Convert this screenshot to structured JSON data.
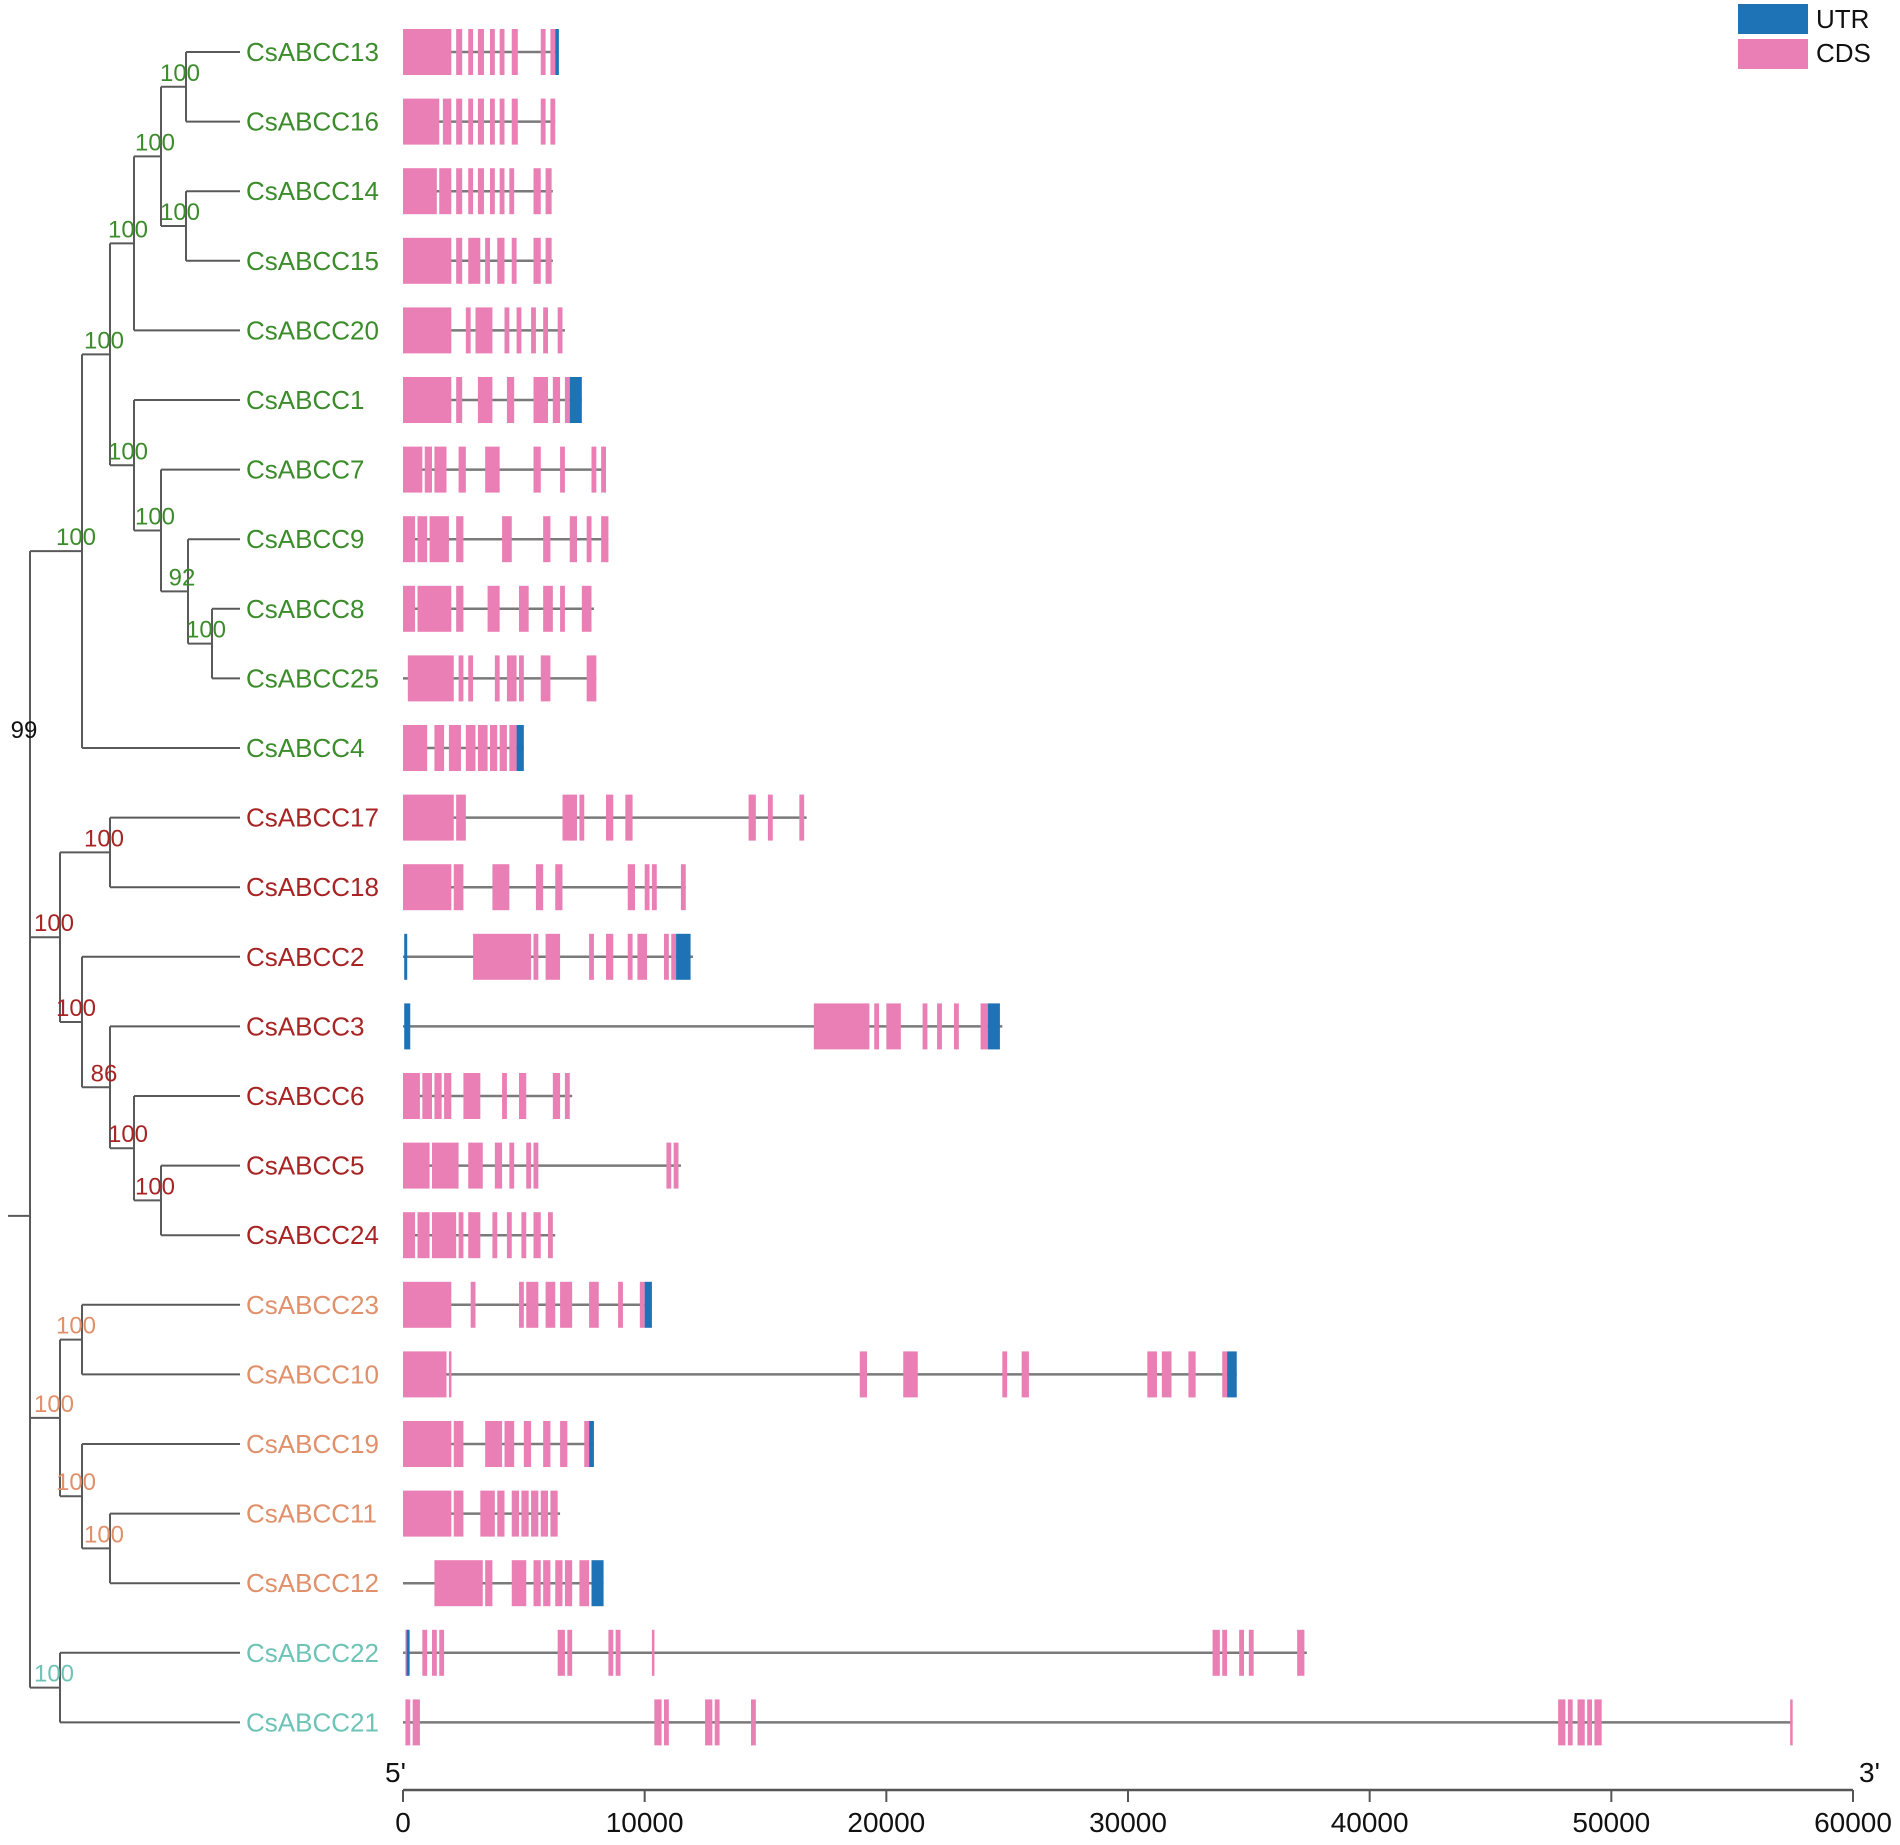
{
  "legend": {
    "utr_label": "UTR",
    "cds_label": "CDS"
  },
  "colors": {
    "utr": "#1e73b6",
    "cds": "#e97fb4",
    "line": "#7a7a7a",
    "tree": "#5a5a5a",
    "group1": "#3c8c2c",
    "group2": "#a82424",
    "group3": "#e0906a",
    "group4": "#6ec3b7",
    "root": "#111111"
  },
  "axis": {
    "start_label": "5'",
    "end_label": "3'",
    "min": 0,
    "max": 60000,
    "ticks": [
      0,
      10000,
      20000,
      30000,
      40000,
      50000,
      60000
    ]
  },
  "genes": [
    {
      "name": "CsABCC13",
      "group": "group1",
      "len": 6400,
      "cds": [
        [
          0,
          2000
        ],
        [
          2200,
          2450
        ],
        [
          2700,
          2900
        ],
        [
          3100,
          3350
        ],
        [
          3600,
          3800
        ],
        [
          4000,
          4200
        ],
        [
          4500,
          4750
        ],
        [
          5700,
          5900
        ],
        [
          6100,
          6300
        ]
      ],
      "utr": [
        [
          6300,
          6450
        ]
      ]
    },
    {
      "name": "CsABCC16",
      "group": "group1",
      "len": 6300,
      "cds": [
        [
          0,
          1500
        ],
        [
          1650,
          2000
        ],
        [
          2200,
          2450
        ],
        [
          2700,
          2900
        ],
        [
          3100,
          3350
        ],
        [
          3600,
          3800
        ],
        [
          4000,
          4200
        ],
        [
          4500,
          4750
        ],
        [
          5700,
          5900
        ],
        [
          6100,
          6300
        ]
      ],
      "utr": []
    },
    {
      "name": "CsABCC14",
      "group": "group1",
      "len": 6200,
      "cds": [
        [
          0,
          1400
        ],
        [
          1500,
          2000
        ],
        [
          2200,
          2450
        ],
        [
          2700,
          2900
        ],
        [
          3100,
          3350
        ],
        [
          3600,
          3800
        ],
        [
          4000,
          4200
        ],
        [
          4400,
          4600
        ],
        [
          5400,
          5700
        ],
        [
          5900,
          6150
        ]
      ],
      "utr": []
    },
    {
      "name": "CsABCC15",
      "group": "group1",
      "len": 6200,
      "cds": [
        [
          0,
          2000
        ],
        [
          2200,
          2450
        ],
        [
          2700,
          3200
        ],
        [
          3400,
          3600
        ],
        [
          3900,
          4200
        ],
        [
          4500,
          4700
        ],
        [
          5400,
          5700
        ],
        [
          5900,
          6150
        ]
      ],
      "utr": []
    },
    {
      "name": "CsABCC20",
      "group": "group1",
      "len": 6700,
      "cds": [
        [
          0,
          2000
        ],
        [
          2600,
          2800
        ],
        [
          3000,
          3700
        ],
        [
          4200,
          4400
        ],
        [
          4700,
          4900
        ],
        [
          5300,
          5500
        ],
        [
          5800,
          6000
        ],
        [
          6400,
          6600
        ]
      ],
      "utr": []
    },
    {
      "name": "CsABCC1",
      "group": "group1",
      "len": 7400,
      "cds": [
        [
          0,
          2000
        ],
        [
          2200,
          2450
        ],
        [
          3100,
          3700
        ],
        [
          4300,
          4600
        ],
        [
          5400,
          6000
        ],
        [
          6200,
          6500
        ],
        [
          6700,
          6900
        ]
      ],
      "utr": [
        [
          6900,
          7400
        ]
      ]
    },
    {
      "name": "CsABCC7",
      "group": "group1",
      "len": 8400,
      "cds": [
        [
          0,
          800
        ],
        [
          900,
          1200
        ],
        [
          1300,
          1800
        ],
        [
          2300,
          2600
        ],
        [
          3400,
          4000
        ],
        [
          5400,
          5700
        ],
        [
          6500,
          6700
        ],
        [
          7800,
          8000
        ],
        [
          8200,
          8400
        ]
      ],
      "utr": []
    },
    {
      "name": "CsABCC9",
      "group": "group1",
      "len": 8500,
      "cds": [
        [
          0,
          500
        ],
        [
          600,
          1000
        ],
        [
          1100,
          1900
        ],
        [
          2200,
          2500
        ],
        [
          4100,
          4500
        ],
        [
          5800,
          6100
        ],
        [
          6900,
          7200
        ],
        [
          7600,
          7800
        ],
        [
          8200,
          8500
        ]
      ],
      "utr": []
    },
    {
      "name": "CsABCC8",
      "group": "group1",
      "len": 7900,
      "cds": [
        [
          0,
          500
        ],
        [
          600,
          2000
        ],
        [
          2200,
          2500
        ],
        [
          3500,
          4000
        ],
        [
          4800,
          5200
        ],
        [
          5800,
          6200
        ],
        [
          6500,
          6700
        ],
        [
          7400,
          7800
        ]
      ],
      "utr": []
    },
    {
      "name": "CsABCC25",
      "group": "group1",
      "len": 8000,
      "cds": [
        [
          200,
          2100
        ],
        [
          2300,
          2500
        ],
        [
          2700,
          2900
        ],
        [
          3800,
          4000
        ],
        [
          4300,
          4700
        ],
        [
          4800,
          5000
        ],
        [
          5700,
          6100
        ],
        [
          7600,
          8000
        ]
      ],
      "utr": []
    },
    {
      "name": "CsABCC4",
      "group": "group1",
      "len": 5000,
      "cds": [
        [
          0,
          1000
        ],
        [
          1300,
          1700
        ],
        [
          1900,
          2400
        ],
        [
          2600,
          3000
        ],
        [
          3100,
          3500
        ],
        [
          3600,
          3900
        ],
        [
          4000,
          4300
        ],
        [
          4400,
          4700
        ]
      ],
      "utr": [
        [
          4700,
          5000
        ]
      ]
    },
    {
      "name": "CsABCC17",
      "group": "group2",
      "len": 16700,
      "cds": [
        [
          0,
          2100
        ],
        [
          2200,
          2600
        ],
        [
          6600,
          7200
        ],
        [
          7300,
          7500
        ],
        [
          8400,
          8700
        ],
        [
          9200,
          9500
        ],
        [
          14300,
          14600
        ],
        [
          15100,
          15300
        ],
        [
          16400,
          16600
        ]
      ],
      "utr": []
    },
    {
      "name": "CsABCC18",
      "group": "group2",
      "len": 11700,
      "cds": [
        [
          0,
          2000
        ],
        [
          2100,
          2500
        ],
        [
          3700,
          4400
        ],
        [
          5500,
          5800
        ],
        [
          6300,
          6600
        ],
        [
          9300,
          9600
        ],
        [
          10000,
          10200
        ],
        [
          10300,
          10500
        ],
        [
          11500,
          11700
        ]
      ],
      "utr": []
    },
    {
      "name": "CsABCC2",
      "group": "group2",
      "len": 12000,
      "cds": [
        [
          2900,
          5300
        ],
        [
          5400,
          5600
        ],
        [
          5900,
          6500
        ],
        [
          7700,
          7900
        ],
        [
          8400,
          8700
        ],
        [
          9300,
          9500
        ],
        [
          9700,
          10100
        ],
        [
          10800,
          11000
        ],
        [
          11100,
          11300
        ]
      ],
      "utr": [
        [
          50,
          150
        ],
        [
          11300,
          11900
        ]
      ]
    },
    {
      "name": "CsABCC3",
      "group": "group2",
      "len": 24800,
      "cds": [
        [
          17000,
          19300
        ],
        [
          19500,
          19700
        ],
        [
          20000,
          20600
        ],
        [
          21500,
          21700
        ],
        [
          22100,
          22300
        ],
        [
          22800,
          23000
        ],
        [
          23900,
          24200
        ]
      ],
      "utr": [
        [
          50,
          300
        ],
        [
          24200,
          24700
        ]
      ]
    },
    {
      "name": "CsABCC6",
      "group": "group2",
      "len": 7000,
      "cds": [
        [
          0,
          700
        ],
        [
          800,
          1200
        ],
        [
          1300,
          1600
        ],
        [
          1700,
          2000
        ],
        [
          2500,
          3200
        ],
        [
          4100,
          4300
        ],
        [
          4800,
          5100
        ],
        [
          6200,
          6500
        ],
        [
          6700,
          6900
        ]
      ],
      "utr": []
    },
    {
      "name": "CsABCC5",
      "group": "group2",
      "len": 11500,
      "cds": [
        [
          0,
          1100
        ],
        [
          1200,
          2300
        ],
        [
          2700,
          3300
        ],
        [
          3800,
          4100
        ],
        [
          4400,
          4600
        ],
        [
          5100,
          5300
        ],
        [
          5400,
          5600
        ],
        [
          10900,
          11100
        ],
        [
          11200,
          11400
        ]
      ],
      "utr": []
    },
    {
      "name": "CsABCC24",
      "group": "group2",
      "len": 6300,
      "cds": [
        [
          0,
          500
        ],
        [
          600,
          1100
        ],
        [
          1200,
          2200
        ],
        [
          2300,
          2500
        ],
        [
          2700,
          3200
        ],
        [
          3700,
          3900
        ],
        [
          4300,
          4500
        ],
        [
          4900,
          5100
        ],
        [
          5400,
          5700
        ],
        [
          6000,
          6200
        ]
      ],
      "utr": []
    },
    {
      "name": "CsABCC23",
      "group": "group3",
      "len": 10300,
      "cds": [
        [
          0,
          2000
        ],
        [
          2800,
          3000
        ],
        [
          4800,
          5000
        ],
        [
          5100,
          5600
        ],
        [
          5900,
          6300
        ],
        [
          6500,
          7000
        ],
        [
          7700,
          8100
        ],
        [
          8900,
          9100
        ],
        [
          9800,
          10000
        ]
      ],
      "utr": [
        [
          10000,
          10300
        ]
      ]
    },
    {
      "name": "CsABCC10",
      "group": "group3",
      "len": 34500,
      "cds": [
        [
          0,
          1800
        ],
        [
          1900,
          2000
        ],
        [
          18900,
          19200
        ],
        [
          20700,
          21300
        ],
        [
          24800,
          25000
        ],
        [
          25600,
          25900
        ],
        [
          30800,
          31200
        ],
        [
          31400,
          31800
        ],
        [
          32500,
          32800
        ],
        [
          33900,
          34100
        ]
      ],
      "utr": [
        [
          34100,
          34500
        ]
      ]
    },
    {
      "name": "CsABCC19",
      "group": "group3",
      "len": 7900,
      "cds": [
        [
          0,
          2000
        ],
        [
          2100,
          2500
        ],
        [
          3400,
          4100
        ],
        [
          4200,
          4600
        ],
        [
          5000,
          5300
        ],
        [
          5800,
          6100
        ],
        [
          6500,
          6800
        ],
        [
          7500,
          7700
        ]
      ],
      "utr": [
        [
          7700,
          7900
        ]
      ]
    },
    {
      "name": "CsABCC11",
      "group": "group3",
      "len": 6500,
      "cds": [
        [
          0,
          2000
        ],
        [
          2100,
          2500
        ],
        [
          3200,
          3800
        ],
        [
          3900,
          4200
        ],
        [
          4500,
          4800
        ],
        [
          4900,
          5200
        ],
        [
          5300,
          5600
        ],
        [
          5700,
          6000
        ],
        [
          6100,
          6400
        ]
      ],
      "utr": []
    },
    {
      "name": "CsABCC12",
      "group": "group3",
      "len": 8300,
      "cds": [
        [
          1300,
          3300
        ],
        [
          3400,
          3700
        ],
        [
          4500,
          5100
        ],
        [
          5400,
          5700
        ],
        [
          5800,
          6100
        ],
        [
          6300,
          6600
        ],
        [
          6700,
          7000
        ],
        [
          7300,
          7700
        ]
      ],
      "utr": [
        [
          7800,
          8300
        ]
      ]
    },
    {
      "name": "CsABCC22",
      "group": "group4",
      "len": 37400,
      "cds": [
        [
          100,
          200
        ],
        [
          800,
          1000
        ],
        [
          1200,
          1400
        ],
        [
          1500,
          1700
        ],
        [
          6400,
          6700
        ],
        [
          6800,
          7000
        ],
        [
          8500,
          8700
        ],
        [
          8800,
          9000
        ],
        [
          10300,
          10400
        ],
        [
          33500,
          33800
        ],
        [
          33900,
          34100
        ],
        [
          34600,
          34800
        ],
        [
          35000,
          35200
        ],
        [
          37000,
          37300
        ]
      ],
      "utr": [
        [
          150,
          250
        ]
      ]
    },
    {
      "name": "CsABCC21",
      "group": "group4",
      "len": 57500,
      "cds": [
        [
          100,
          300
        ],
        [
          400,
          700
        ],
        [
          10400,
          10700
        ],
        [
          10800,
          11000
        ],
        [
          12500,
          12800
        ],
        [
          12900,
          13100
        ],
        [
          14400,
          14600
        ],
        [
          47800,
          48100
        ],
        [
          48200,
          48400
        ],
        [
          48600,
          48900
        ],
        [
          49000,
          49200
        ],
        [
          49300,
          49600
        ],
        [
          57400,
          57500
        ]
      ],
      "utr": []
    }
  ],
  "tree_nodes": [
    {
      "id": "n_13_16",
      "support": "100",
      "group": "group1"
    },
    {
      "id": "n_14_15",
      "support": "100",
      "group": "group1"
    },
    {
      "id": "n_a",
      "support": "100",
      "group": "group1"
    },
    {
      "id": "n_b",
      "support": "100",
      "group": "group1"
    },
    {
      "id": "n_8_25",
      "support": "100",
      "group": "group1"
    },
    {
      "id": "n_9_c",
      "support": "92",
      "group": "group1"
    },
    {
      "id": "n_7_d",
      "support": "100",
      "group": "group1"
    },
    {
      "id": "n_1_e",
      "support": "100",
      "group": "group1"
    },
    {
      "id": "n_c_f",
      "support": "100",
      "group": "group1"
    },
    {
      "id": "n_g_4",
      "support": "100",
      "group": "group1"
    },
    {
      "id": "n_17_18",
      "support": "100",
      "group": "group2"
    },
    {
      "id": "n_5_24",
      "support": "100",
      "group": "group2"
    },
    {
      "id": "n_6_h",
      "support": "100",
      "group": "group2"
    },
    {
      "id": "n_3_i",
      "support": "86",
      "group": "group2"
    },
    {
      "id": "n_2_j",
      "support": "100",
      "group": "group2"
    },
    {
      "id": "n_k_l",
      "support": "100",
      "group": "group2"
    },
    {
      "id": "n_green_red",
      "support": "99",
      "group": "root"
    },
    {
      "id": "n_11_12",
      "support": "100",
      "group": "group3"
    },
    {
      "id": "n_19_m",
      "support": "100",
      "group": "group3"
    },
    {
      "id": "n_23_10",
      "support": "100",
      "group": "group3"
    },
    {
      "id": "n_o_n",
      "support": "100",
      "group": "group3"
    },
    {
      "id": "n_22_21",
      "support": "100",
      "group": "group4"
    }
  ]
}
